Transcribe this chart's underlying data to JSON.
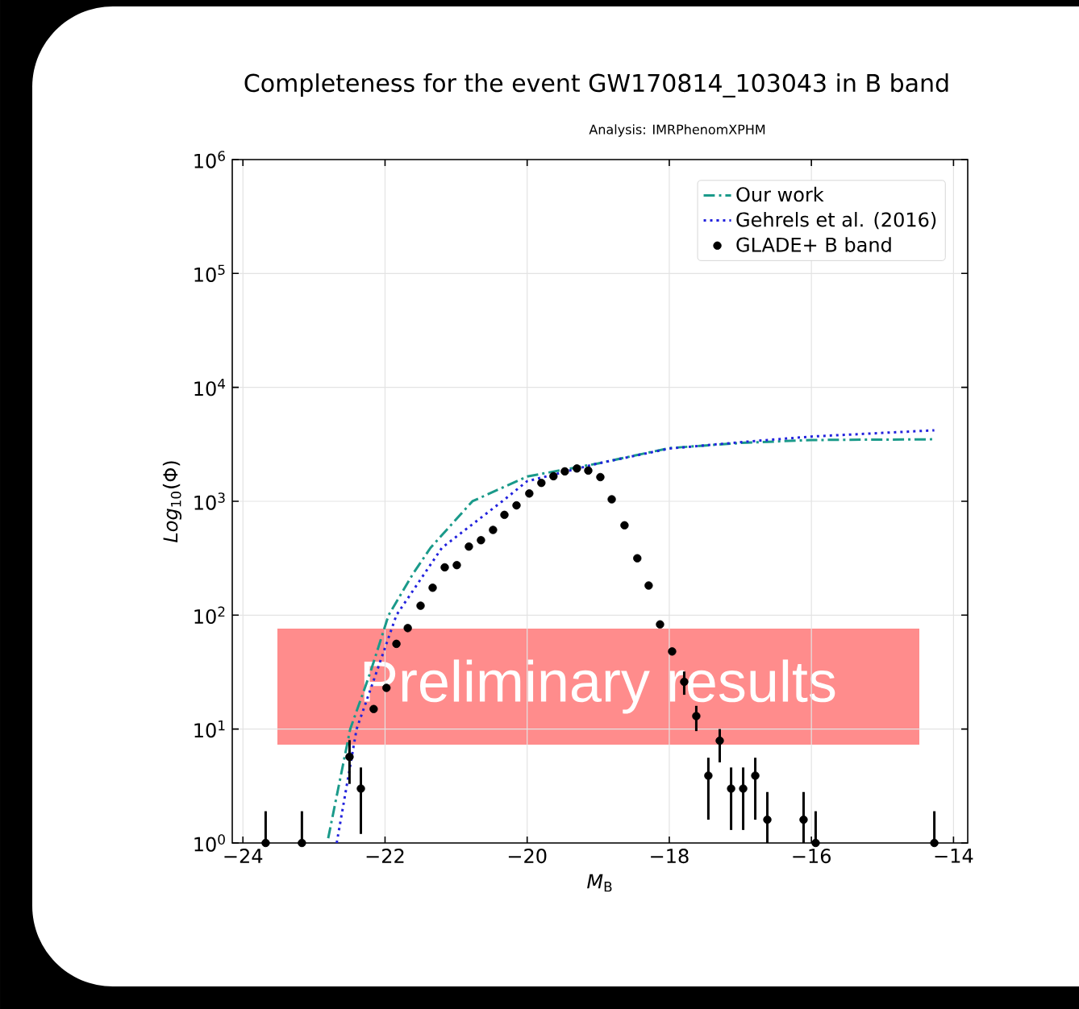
{
  "chart_data": {
    "type": "line",
    "title": "Completeness for the event GW170814_103043 in B band",
    "subtitle": "Analysis: IMRPhenomXPHM",
    "xlabel": "*M*$_{B}$",
    "ylabel": "*Log*$_{10}$(Φ)",
    "xlim": [
      -24.15,
      -13.8
    ],
    "ylim": [
      1,
      1000000
    ],
    "log": "y",
    "grid": true,
    "legend": "top right",
    "xticks": [
      {
        "value": -24,
        "label": "−24"
      },
      {
        "value": -22,
        "label": "−22"
      },
      {
        "value": -20,
        "label": "−20"
      },
      {
        "value": -18,
        "label": "−18"
      },
      {
        "value": -16,
        "label": "−16"
      },
      {
        "value": -14,
        "label": "−14"
      }
    ],
    "yticks": [
      {
        "value": 1,
        "label": "10$^{0}$"
      },
      {
        "value": 10,
        "label": "10$^{1}$"
      },
      {
        "value": 100,
        "label": "10$^{2}$"
      },
      {
        "value": 1000,
        "label": "10$^{3}$"
      },
      {
        "value": 10000,
        "label": "10$^{4}$"
      },
      {
        "value": 100000,
        "label": "10$^{5}$"
      },
      {
        "value": 1000000,
        "label": "10$^{6}$"
      }
    ],
    "annotations": [
      "Preliminary results"
    ],
    "series": [
      {
        "name": "Our work",
        "color": "#1a9a8a",
        "line_style": "dashdot",
        "marker": "none",
        "x": [
          -22.8,
          -22.49,
          -22.21,
          -21.95,
          -21.61,
          -21.36,
          -20.77,
          -20,
          -19,
          -18,
          -17,
          -16,
          -14.27
        ],
        "values": [
          1.1,
          10,
          31,
          100,
          229,
          390,
          1000,
          1650,
          2150,
          2930,
          3250,
          3450,
          3500
        ]
      },
      {
        "name": "Gehrels et al. (2016)",
        "color": "#2222dd",
        "line_style": "dotted",
        "marker": "none",
        "x": [
          -22.68,
          -22.4,
          -21.84,
          -21.2,
          -20.35,
          -20,
          -19,
          -18,
          -17,
          -16,
          -14.27
        ],
        "values": [
          1,
          10,
          100,
          390,
          1000,
          1500,
          2150,
          2900,
          3300,
          3700,
          4200
        ]
      },
      {
        "name": "GLADE+ B band",
        "type": "scatter",
        "color": "#000000",
        "marker": "circle",
        "x": [
          -23.68,
          -23.17,
          -22.5,
          -22.34,
          -22.16,
          -21.98,
          -21.84,
          -21.68,
          -21.5,
          -21.33,
          -21.16,
          -20.99,
          -20.82,
          -20.65,
          -20.48,
          -20.32,
          -20.15,
          -19.97,
          -19.8,
          -19.63,
          -19.47,
          -19.3,
          -19.14,
          -18.97,
          -18.81,
          -18.63,
          -18.45,
          -18.29,
          -18.13,
          -17.96,
          -17.79,
          -17.62,
          -17.45,
          -17.29,
          -17.13,
          -16.96,
          -16.79,
          -16.62,
          -16.11,
          -15.94,
          -14.27
        ],
        "values": [
          1,
          1,
          5.7,
          3,
          15,
          23,
          56,
          77,
          121,
          174,
          263,
          275,
          400,
          455,
          560,
          760,
          920,
          1170,
          1450,
          1660,
          1830,
          1940,
          1860,
          1630,
          1040,
          615,
          316,
          182,
          83,
          48,
          26,
          13,
          3.9,
          7.9,
          3,
          3,
          3.9,
          1.6,
          1.6,
          1,
          1
        ],
        "errors": [
          [
            1,
            1.9
          ],
          [
            1,
            1.9
          ],
          [
            3.3,
            8
          ],
          [
            1.2,
            4.6
          ],
          null,
          null,
          null,
          null,
          null,
          null,
          null,
          null,
          null,
          null,
          null,
          null,
          null,
          null,
          null,
          null,
          null,
          null,
          null,
          null,
          null,
          null,
          null,
          null,
          null,
          null,
          [
            20,
            32
          ],
          [
            9.6,
            16
          ],
          [
            1.6,
            5.6
          ],
          [
            5.1,
            10
          ],
          [
            1.3,
            4.6
          ],
          [
            1.3,
            4.6
          ],
          [
            1.6,
            5.6
          ],
          [
            1,
            2.8
          ],
          [
            1,
            2.8
          ],
          [
            1,
            1.9
          ],
          [
            1,
            1.9
          ]
        ]
      }
    ]
  }
}
